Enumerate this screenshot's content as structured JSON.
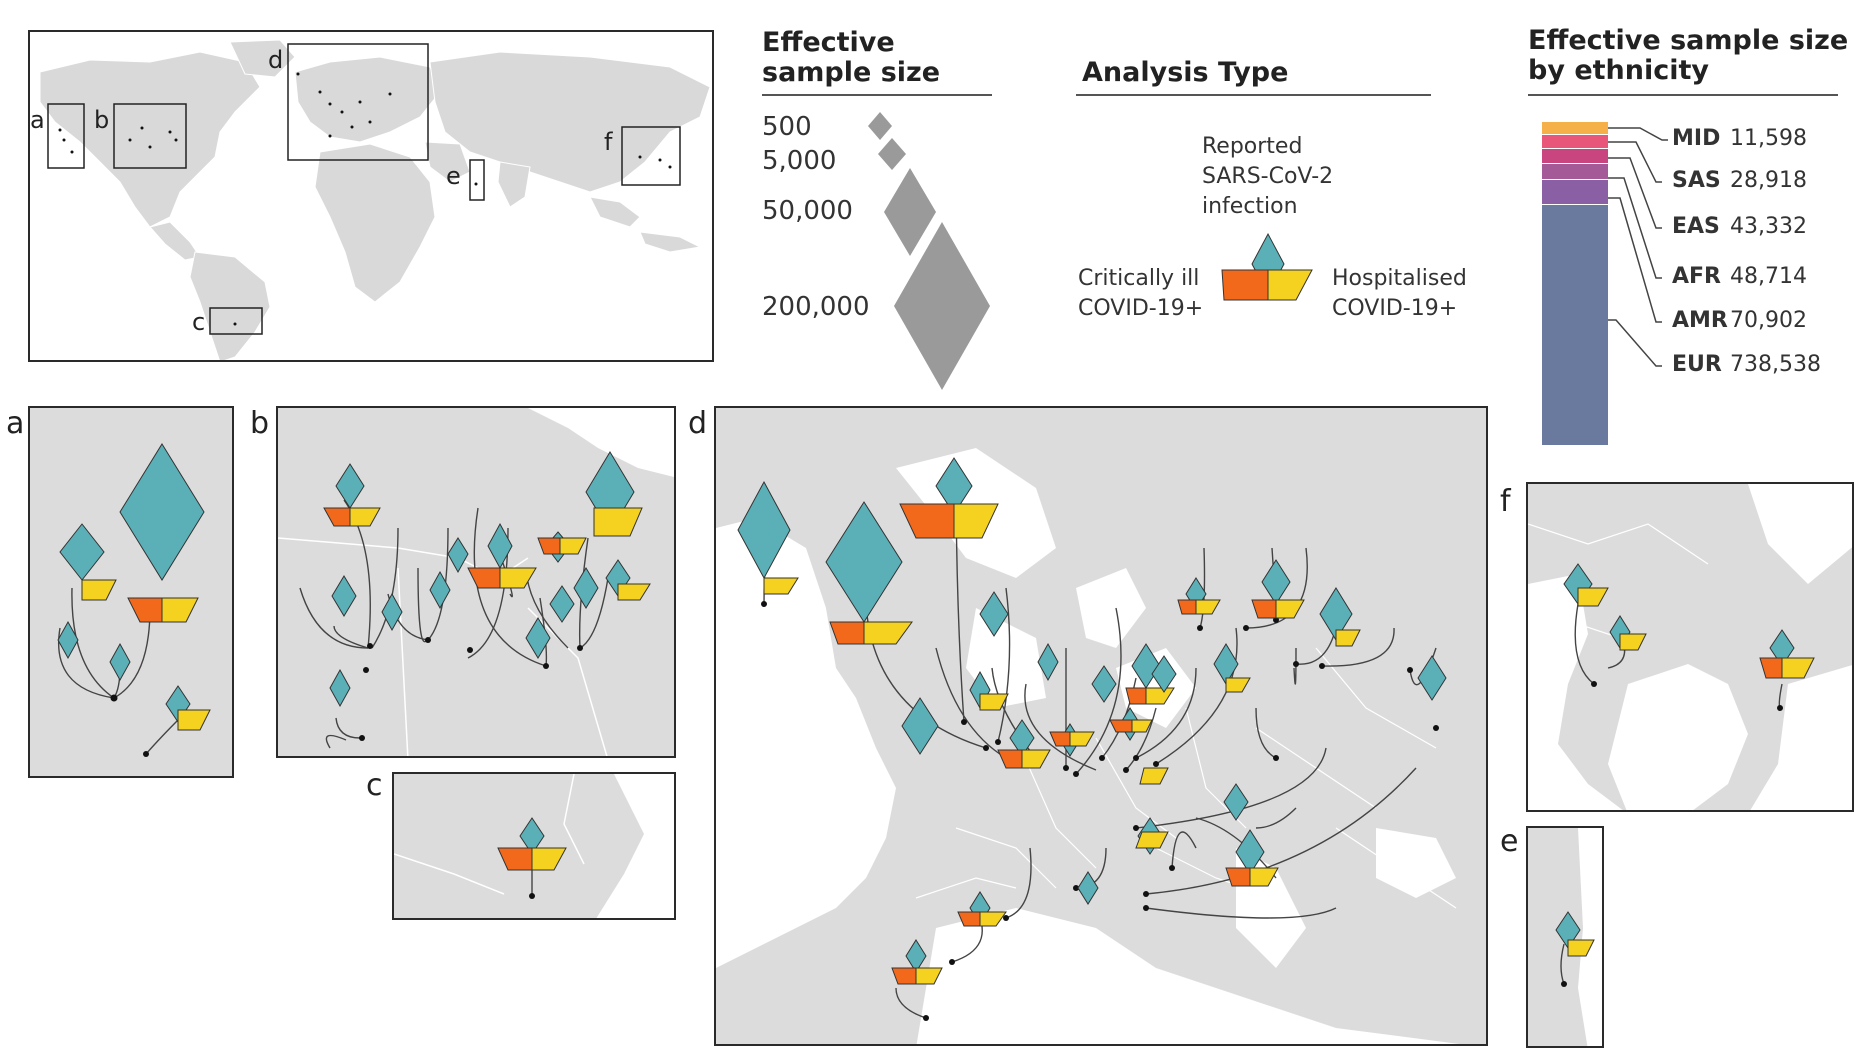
{
  "world": {
    "box_labels": [
      "a",
      "b",
      "c",
      "d",
      "e",
      "f"
    ]
  },
  "legend_size": {
    "title_line1": "Effective",
    "title_line2": "sample size",
    "items": [
      "500",
      "5,000",
      "50,000",
      "200,000"
    ]
  },
  "legend_analysis": {
    "title": "Analysis Type",
    "reported": [
      "Reported",
      "SARS-CoV-2",
      "infection"
    ],
    "critical": [
      "Critically ill",
      "COVID-19+"
    ],
    "hospital": [
      "Hospitalised",
      "COVID-19+"
    ]
  },
  "legend_ethnicity": {
    "title_line1": "Effective sample size",
    "title_line2": "by ethnicity",
    "groups": [
      {
        "code": "MID",
        "value": "11,598",
        "color": "#f6b04a"
      },
      {
        "code": "SAS",
        "value": "28,918",
        "color": "#e8577a"
      },
      {
        "code": "EAS",
        "value": "43,332",
        "color": "#c9457f"
      },
      {
        "code": "AFR",
        "value": "48,714",
        "color": "#a45a97"
      },
      {
        "code": "AMR",
        "value": "70,902",
        "color": "#8a5fa4"
      },
      {
        "code": "EUR",
        "value": "738,538",
        "color": "#6a7a9e"
      }
    ]
  },
  "panels": {
    "a": "a",
    "b": "b",
    "c": "c",
    "d": "d",
    "e": "e",
    "f": "f"
  },
  "colors": {
    "reported": "#5bb0b8",
    "critical": "#f2691c",
    "hospital": "#f5d21f",
    "land": "#dcdcdc",
    "size_legend": "#9a9a9a"
  }
}
